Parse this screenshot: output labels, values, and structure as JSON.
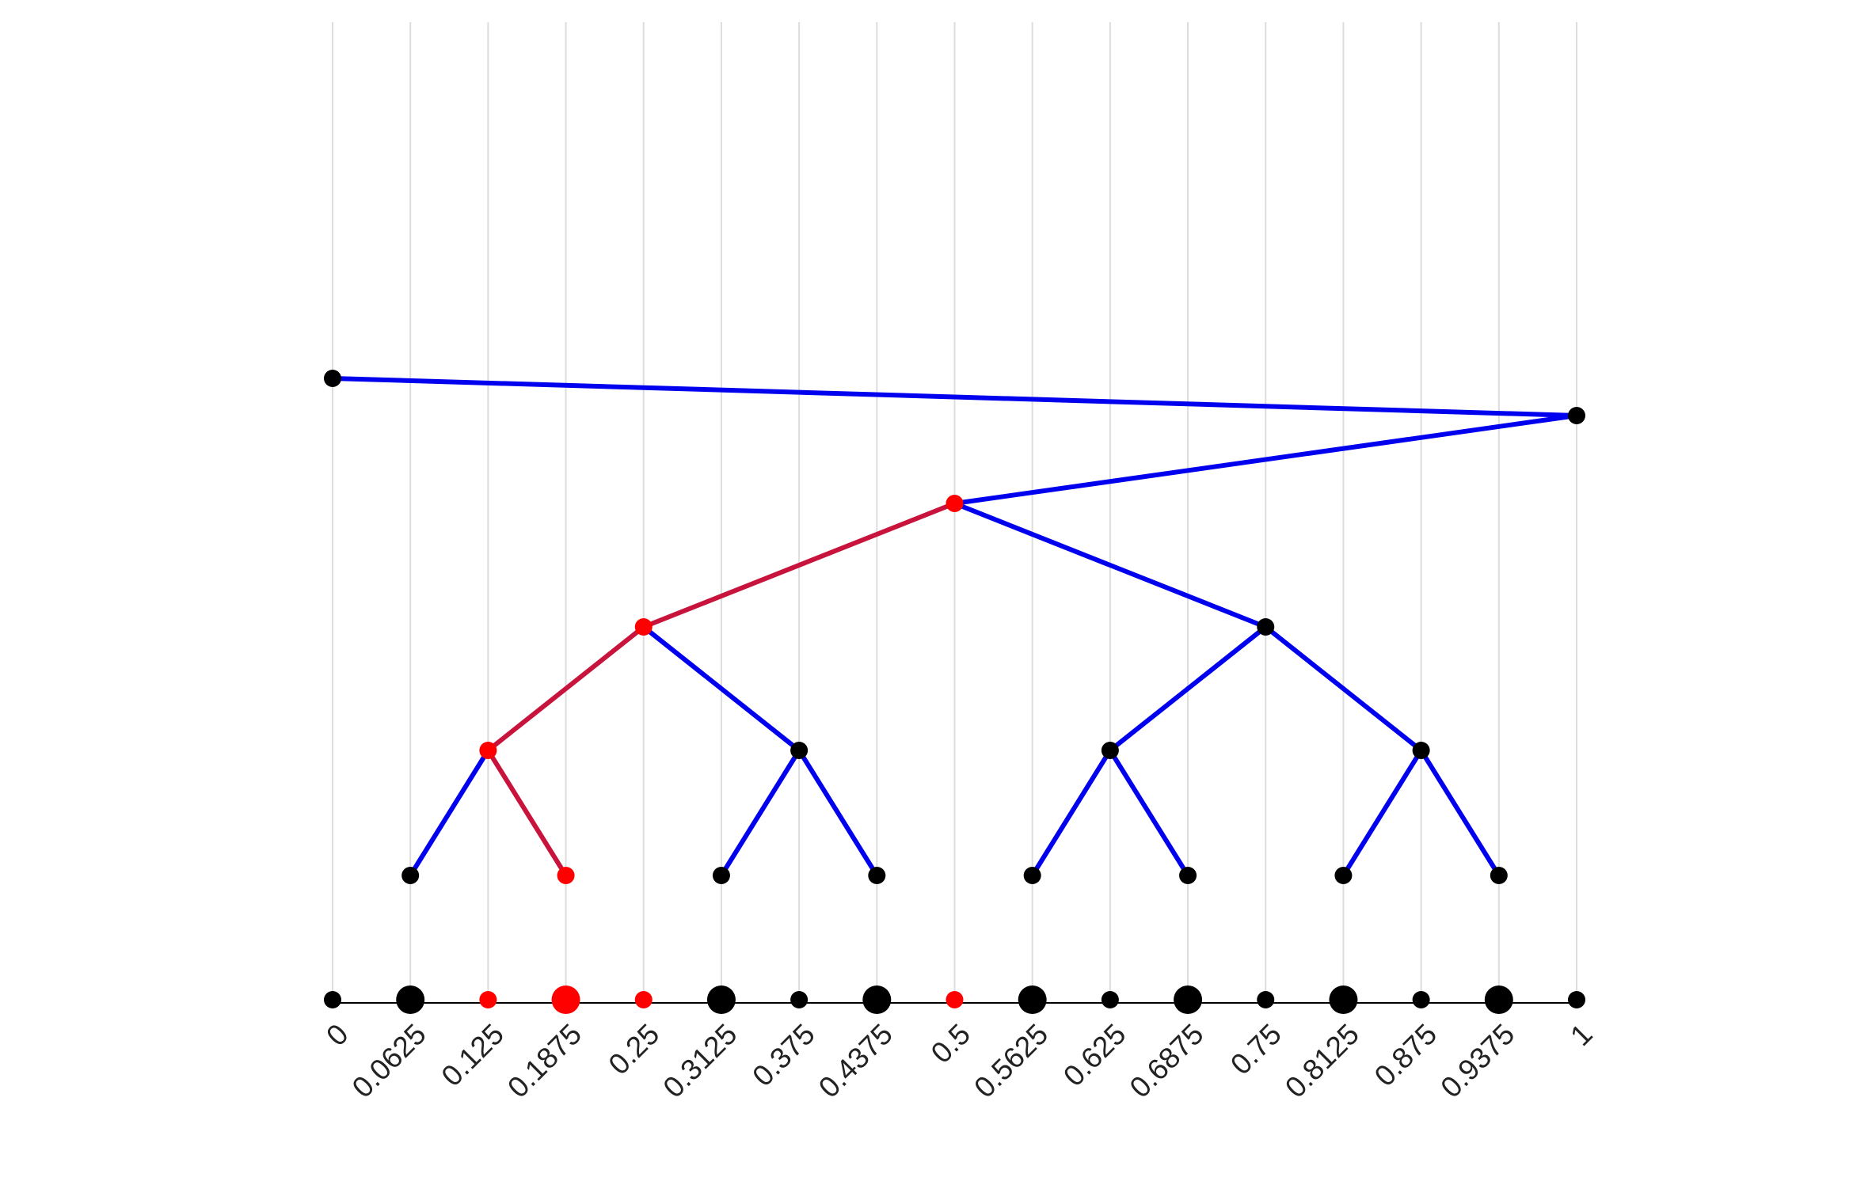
{
  "chart_data": {
    "type": "tree",
    "xlim": [
      0,
      1
    ],
    "xticks": [
      0,
      0.0625,
      0.125,
      0.1875,
      0.25,
      0.3125,
      0.375,
      0.4375,
      0.5,
      0.5625,
      0.625,
      0.6875,
      0.75,
      0.8125,
      0.875,
      0.9375,
      1
    ],
    "grid": true,
    "edge_color": "#0000ee",
    "path_color": "#c8143c",
    "nodes": [
      {
        "x": 0,
        "depth": 0,
        "parent": null,
        "color": "#000000"
      },
      {
        "x": 1,
        "depth": 1,
        "parent": 0,
        "color": "#000000"
      },
      {
        "x": 0.5,
        "depth": 2,
        "parent": 1,
        "color": "#ff0000"
      },
      {
        "x": 0.25,
        "depth": 3,
        "parent": 2,
        "color": "#ff0000"
      },
      {
        "x": 0.75,
        "depth": 3,
        "parent": 2,
        "color": "#000000"
      },
      {
        "x": 0.125,
        "depth": 4,
        "parent": 3,
        "color": "#ff0000"
      },
      {
        "x": 0.375,
        "depth": 4,
        "parent": 3,
        "color": "#000000"
      },
      {
        "x": 0.625,
        "depth": 4,
        "parent": 4,
        "color": "#000000"
      },
      {
        "x": 0.875,
        "depth": 4,
        "parent": 4,
        "color": "#000000"
      },
      {
        "x": 0.0625,
        "depth": 5,
        "parent": 5,
        "color": "#000000"
      },
      {
        "x": 0.1875,
        "depth": 5,
        "parent": 5,
        "color": "#ff0000"
      },
      {
        "x": 0.3125,
        "depth": 5,
        "parent": 6,
        "color": "#000000"
      },
      {
        "x": 0.4375,
        "depth": 5,
        "parent": 6,
        "color": "#000000"
      },
      {
        "x": 0.5625,
        "depth": 5,
        "parent": 7,
        "color": "#000000"
      },
      {
        "x": 0.6875,
        "depth": 5,
        "parent": 7,
        "color": "#000000"
      },
      {
        "x": 0.8125,
        "depth": 5,
        "parent": 8,
        "color": "#000000"
      },
      {
        "x": 0.9375,
        "depth": 5,
        "parent": 8,
        "color": "#000000"
      }
    ],
    "points": [
      {
        "x": 0,
        "size": 1,
        "color": "#000000"
      },
      {
        "x": 0.0625,
        "size": 2,
        "color": "#000000"
      },
      {
        "x": 0.125,
        "size": 1,
        "color": "#ff0000"
      },
      {
        "x": 0.1875,
        "size": 2,
        "color": "#ff0000"
      },
      {
        "x": 0.25,
        "size": 1,
        "color": "#ff0000"
      },
      {
        "x": 0.3125,
        "size": 2,
        "color": "#000000"
      },
      {
        "x": 0.375,
        "size": 1,
        "color": "#000000"
      },
      {
        "x": 0.4375,
        "size": 2,
        "color": "#000000"
      },
      {
        "x": 0.5,
        "size": 1,
        "color": "#ff0000"
      },
      {
        "x": 0.5625,
        "size": 2,
        "color": "#000000"
      },
      {
        "x": 0.625,
        "size": 1,
        "color": "#000000"
      },
      {
        "x": 0.6875,
        "size": 2,
        "color": "#000000"
      },
      {
        "x": 0.75,
        "size": 1,
        "color": "#000000"
      },
      {
        "x": 0.8125,
        "size": 2,
        "color": "#000000"
      },
      {
        "x": 0.875,
        "size": 1,
        "color": "#000000"
      },
      {
        "x": 0.9375,
        "size": 2,
        "color": "#000000"
      },
      {
        "x": 1,
        "size": 1,
        "color": "#000000"
      }
    ]
  }
}
